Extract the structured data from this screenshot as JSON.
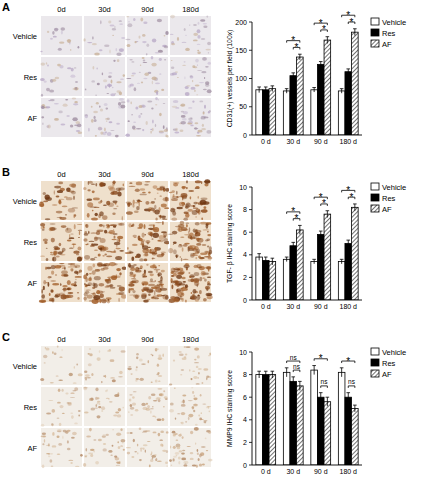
{
  "panels": [
    {
      "label": "A",
      "columns": [
        "0d",
        "30d",
        "90d",
        "180d"
      ],
      "rows": [
        "Vehicle",
        "Res",
        "AF"
      ]
    },
    {
      "label": "B",
      "columns": [
        "0d",
        "30d",
        "90d",
        "180d"
      ],
      "rows": [
        "Vehicle",
        "Res",
        "AF"
      ]
    },
    {
      "label": "C",
      "columns": [
        "0d",
        "30d",
        "90d",
        "180d"
      ],
      "rows": [
        "Vehicle",
        "Res",
        "AF"
      ]
    }
  ],
  "chart_data": [
    {
      "type": "bar",
      "y_label": "CD31(+) vessels per field (100x)",
      "categories": [
        "0 d",
        "30 d",
        "90 d",
        "180 d"
      ],
      "series": [
        {
          "name": "Vehicle",
          "color": "#ffffff",
          "line_style": "solid",
          "values": [
            80,
            78,
            80,
            78
          ],
          "errors": [
            5,
            4,
            4,
            4
          ]
        },
        {
          "name": "Res",
          "color": "#000000",
          "line_style": "solid",
          "values": [
            80,
            105,
            125,
            112
          ],
          "errors": [
            5,
            5,
            5,
            5
          ]
        },
        {
          "name": "AF",
          "color": "#ffffff",
          "line_style": "hatched",
          "values": [
            82,
            138,
            168,
            182
          ],
          "errors": [
            5,
            5,
            6,
            6
          ]
        }
      ],
      "ylim": [
        0,
        200
      ],
      "yticks": [
        0,
        50,
        100,
        150,
        200
      ],
      "legend": "upper right",
      "annotations": [
        {
          "category": "30 d",
          "pair": [
            "Res",
            "AF"
          ],
          "label": "*"
        },
        {
          "category": "30 d",
          "pair": [
            "Vehicle",
            "AF"
          ],
          "label": "*"
        },
        {
          "category": "90 d",
          "pair": [
            "Res",
            "AF"
          ],
          "label": "*"
        },
        {
          "category": "90 d",
          "pair": [
            "Vehicle",
            "AF"
          ],
          "label": "*"
        },
        {
          "category": "180 d",
          "pair": [
            "Res",
            "AF"
          ],
          "label": "*"
        },
        {
          "category": "180 d",
          "pair": [
            "Vehicle",
            "AF"
          ],
          "label": "*"
        }
      ]
    },
    {
      "type": "bar",
      "y_label": "TGF- β IHC staining score",
      "categories": [
        "0 d",
        "30 d",
        "90 d",
        "180 d"
      ],
      "series": [
        {
          "name": "Vehicle",
          "color": "#ffffff",
          "line_style": "solid",
          "values": [
            3.8,
            3.6,
            3.4,
            3.4
          ],
          "errors": [
            0.3,
            0.2,
            0.2,
            0.2
          ]
        },
        {
          "name": "Res",
          "color": "#000000",
          "line_style": "solid",
          "values": [
            3.5,
            4.8,
            5.8,
            5.0
          ],
          "errors": [
            0.3,
            0.3,
            0.3,
            0.3
          ]
        },
        {
          "name": "AF",
          "color": "#ffffff",
          "line_style": "hatched",
          "values": [
            3.4,
            6.2,
            7.6,
            8.2
          ],
          "errors": [
            0.3,
            0.4,
            0.3,
            0.3
          ]
        }
      ],
      "ylim": [
        0,
        10
      ],
      "yticks": [
        0,
        2,
        4,
        6,
        8,
        10
      ],
      "legend": "upper right",
      "annotations": [
        {
          "category": "30 d",
          "pair": [
            "Res",
            "AF"
          ],
          "label": "*"
        },
        {
          "category": "30 d",
          "pair": [
            "Vehicle",
            "AF"
          ],
          "label": "*"
        },
        {
          "category": "90 d",
          "pair": [
            "Res",
            "AF"
          ],
          "label": "*"
        },
        {
          "category": "90 d",
          "pair": [
            "Vehicle",
            "AF"
          ],
          "label": "*"
        },
        {
          "category": "180 d",
          "pair": [
            "Res",
            "AF"
          ],
          "label": "*"
        },
        {
          "category": "180 d",
          "pair": [
            "Vehicle",
            "AF"
          ],
          "label": "*"
        }
      ]
    },
    {
      "type": "bar",
      "y_label": "MMP9 IHC staining score",
      "categories": [
        "0 d",
        "30 d",
        "90 d",
        "180 d"
      ],
      "series": [
        {
          "name": "Vehicle",
          "color": "#ffffff",
          "line_style": "solid",
          "values": [
            8.0,
            8.2,
            8.4,
            8.2
          ],
          "errors": [
            0.3,
            0.4,
            0.4,
            0.4
          ]
        },
        {
          "name": "Res",
          "color": "#000000",
          "line_style": "solid",
          "values": [
            8.0,
            7.4,
            6.0,
            6.0
          ],
          "errors": [
            0.3,
            0.4,
            0.4,
            0.4
          ]
        },
        {
          "name": "AF",
          "color": "#ffffff",
          "line_style": "hatched",
          "values": [
            8.0,
            7.0,
            5.6,
            5.0
          ],
          "errors": [
            0.3,
            0.4,
            0.4,
            0.3
          ]
        }
      ],
      "ylim": [
        0,
        10
      ],
      "yticks": [
        0,
        2,
        4,
        6,
        8,
        10
      ],
      "legend": "upper right",
      "annotations": [
        {
          "category": "30 d",
          "pair": [
            "Res",
            "AF"
          ],
          "label": "ns"
        },
        {
          "category": "30 d",
          "pair": [
            "Vehicle",
            "AF"
          ],
          "label": "ns"
        },
        {
          "category": "90 d",
          "pair": [
            "Res",
            "AF"
          ],
          "label": "ns"
        },
        {
          "category": "90 d",
          "pair": [
            "Vehicle",
            "AF"
          ],
          "label": "*"
        },
        {
          "category": "180 d",
          "pair": [
            "Res",
            "AF"
          ],
          "label": "ns"
        },
        {
          "category": "180 d",
          "pair": [
            "Vehicle",
            "AF"
          ],
          "label": "*"
        }
      ]
    }
  ]
}
